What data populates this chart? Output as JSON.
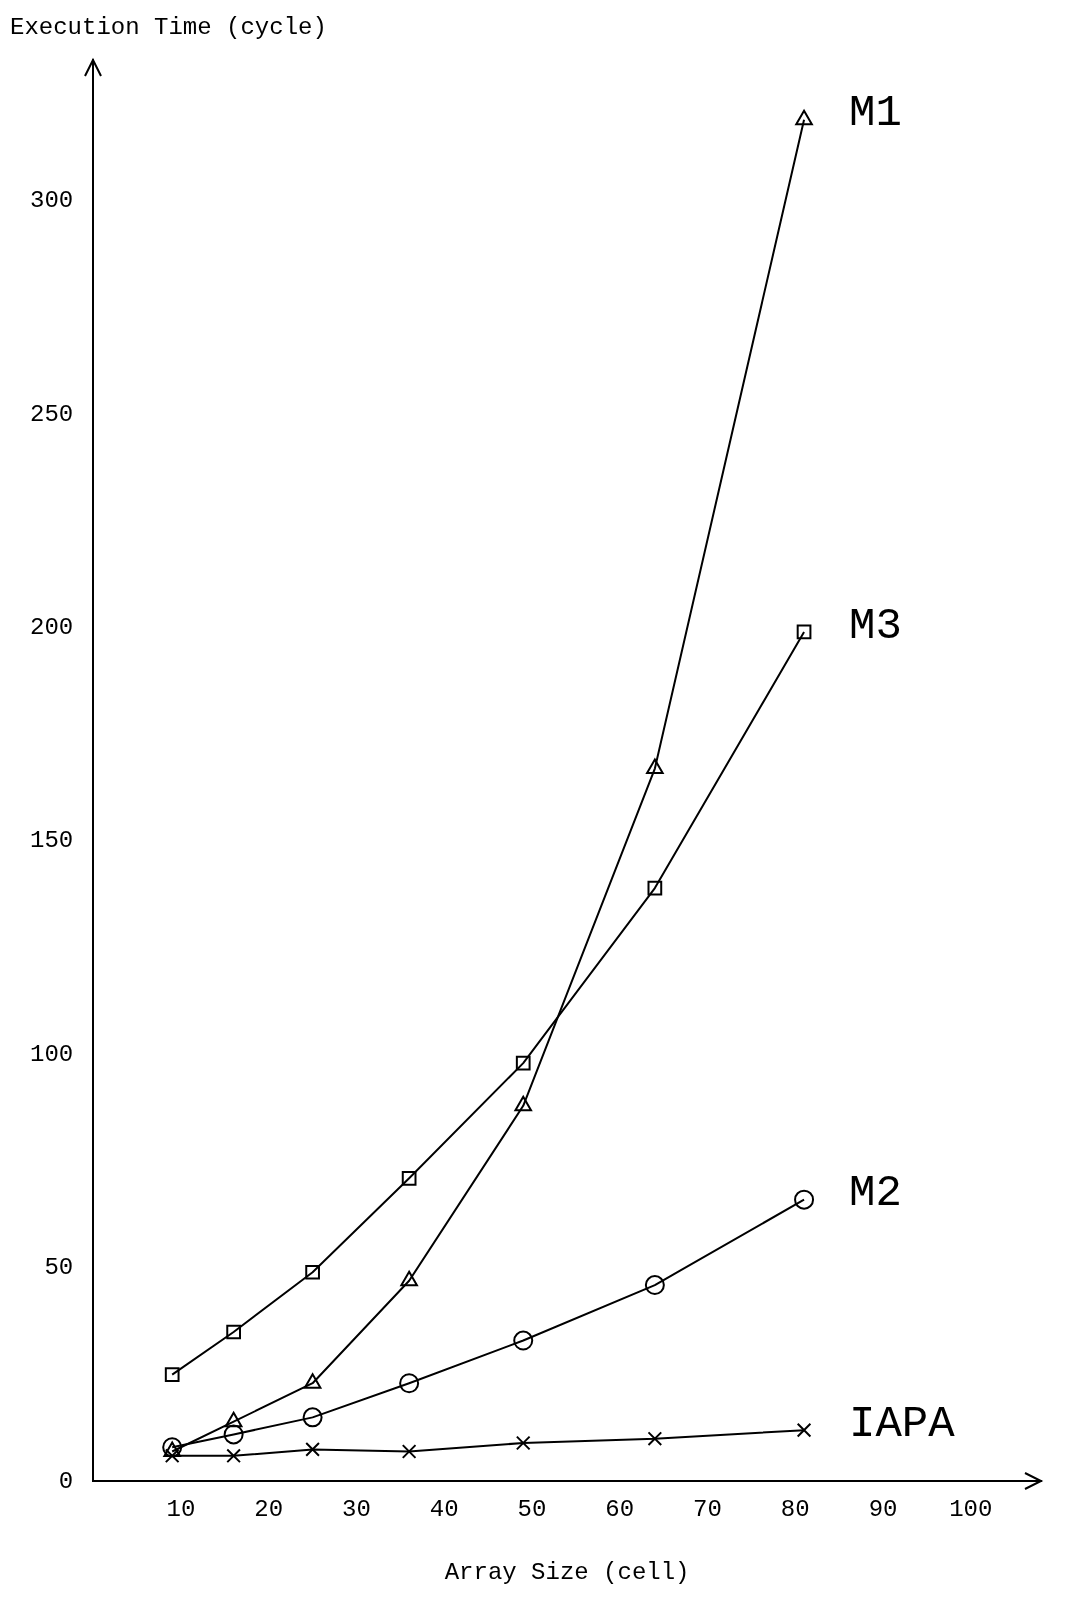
{
  "chart_data": {
    "type": "line",
    "xlabel": "Array Size (cell)",
    "ylabel": "Execution Time (cycle)",
    "x": [
      9,
      16,
      25,
      36,
      49,
      64,
      81
    ],
    "series": [
      {
        "name": "M1",
        "color": "#000000",
        "marker": "triangle",
        "values": [
          7,
          14,
          23,
          47,
          88,
          167,
          319
        ]
      },
      {
        "name": "M3",
        "color": "#000000",
        "marker": "square",
        "values": [
          25,
          35,
          49,
          71,
          98,
          139,
          199
        ]
      },
      {
        "name": "M2",
        "color": "#000000",
        "marker": "circle",
        "values": [
          8,
          11,
          15,
          23,
          33,
          46,
          66
        ]
      },
      {
        "name": "IAPA",
        "color": "#000000",
        "marker": "cross",
        "values": [
          6,
          6,
          7.5,
          7,
          9,
          10,
          12
        ]
      }
    ],
    "xlim": [
      0,
      108
    ],
    "xticks": [
      10,
      20,
      30,
      40,
      50,
      60,
      70,
      80,
      90,
      100
    ],
    "ylim": [
      0,
      333
    ],
    "yticks": [
      0,
      50,
      100,
      150,
      200,
      250,
      300
    ],
    "grid": false,
    "legend": false
  }
}
